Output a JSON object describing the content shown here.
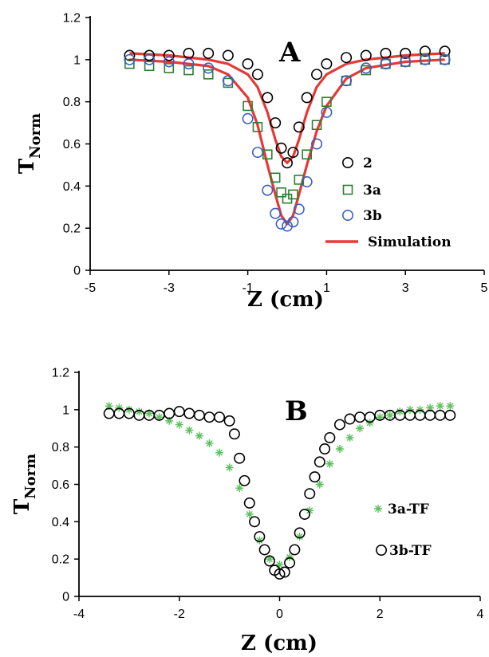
{
  "chart_data": [
    {
      "type": "scatter",
      "panel_label": "A",
      "xlabel": "Z (cm)",
      "ylabel": "T",
      "ylabel_sub": "Norm",
      "xlim": [
        -5,
        5
      ],
      "ylim": [
        0,
        1.2
      ],
      "xticks": [
        "-5",
        "-3",
        "-1",
        "1",
        "3",
        "5"
      ],
      "yticks": [
        "0",
        "0.2",
        "0.4",
        "0.6",
        "0.8",
        "1",
        "1.2"
      ],
      "legend_position": "right",
      "series": [
        {
          "name": "2",
          "marker": "circle",
          "color": "#000000",
          "x": [
            -4.0,
            -3.5,
            -3.0,
            -2.5,
            -2.0,
            -1.5,
            -1.0,
            -0.75,
            -0.5,
            -0.3,
            -0.15,
            0.0,
            0.15,
            0.3,
            0.5,
            0.75,
            1.0,
            1.5,
            2.0,
            2.5,
            3.0,
            3.5,
            4.0
          ],
          "y": [
            1.02,
            1.02,
            1.02,
            1.03,
            1.03,
            1.02,
            0.98,
            0.93,
            0.82,
            0.7,
            0.58,
            0.51,
            0.56,
            0.68,
            0.82,
            0.93,
            0.98,
            1.01,
            1.02,
            1.03,
            1.03,
            1.04,
            1.04
          ]
        },
        {
          "name": "3a",
          "marker": "square",
          "color": "#2e7d32",
          "x": [
            -4.0,
            -3.5,
            -3.0,
            -2.5,
            -2.0,
            -1.5,
            -1.0,
            -0.75,
            -0.5,
            -0.3,
            -0.15,
            0.0,
            0.15,
            0.3,
            0.5,
            0.75,
            1.0,
            1.5,
            2.0,
            2.5,
            3.0,
            3.5,
            4.0
          ],
          "y": [
            0.98,
            0.97,
            0.96,
            0.95,
            0.93,
            0.89,
            0.78,
            0.68,
            0.55,
            0.44,
            0.37,
            0.34,
            0.36,
            0.43,
            0.55,
            0.69,
            0.8,
            0.9,
            0.95,
            0.98,
            0.99,
            1.0,
            1.0
          ]
        },
        {
          "name": "3b",
          "marker": "circle",
          "color": "#3b5fc0",
          "x": [
            -4.0,
            -3.5,
            -3.0,
            -2.5,
            -2.0,
            -1.5,
            -1.0,
            -0.75,
            -0.5,
            -0.3,
            -0.15,
            0.0,
            0.15,
            0.3,
            0.5,
            0.75,
            1.0,
            1.5,
            2.0,
            2.5,
            3.0,
            3.5,
            4.0
          ],
          "y": [
            1.0,
            1.0,
            0.99,
            0.98,
            0.96,
            0.9,
            0.72,
            0.56,
            0.38,
            0.27,
            0.22,
            0.21,
            0.23,
            0.29,
            0.42,
            0.6,
            0.75,
            0.9,
            0.96,
            0.98,
            0.99,
            1.0,
            1.0
          ]
        },
        {
          "name": "Simulation",
          "marker": "line",
          "color": "#e53935",
          "x": [
            -4.0,
            -3.0,
            -2.0,
            -1.5,
            -1.0,
            -0.75,
            -0.5,
            -0.3,
            -0.15,
            0.0,
            0.15,
            0.3,
            0.5,
            0.75,
            1.0,
            1.5,
            2.0,
            3.0,
            4.0
          ],
          "y": [
            1.03,
            1.02,
            1.0,
            0.98,
            0.93,
            0.87,
            0.75,
            0.62,
            0.54,
            0.51,
            0.54,
            0.62,
            0.75,
            0.87,
            0.93,
            0.98,
            1.0,
            1.02,
            1.03
          ]
        },
        {
          "name": "",
          "marker": "line",
          "color": "#e53935",
          "x": [
            -4.0,
            -3.0,
            -2.0,
            -1.5,
            -1.0,
            -0.75,
            -0.5,
            -0.3,
            -0.15,
            0.0,
            0.15,
            0.3,
            0.5,
            0.75,
            1.0,
            1.5,
            2.0,
            3.0,
            4.0
          ],
          "y": [
            1.0,
            0.99,
            0.97,
            0.93,
            0.82,
            0.69,
            0.5,
            0.36,
            0.26,
            0.22,
            0.26,
            0.36,
            0.5,
            0.66,
            0.78,
            0.91,
            0.96,
            0.99,
            1.0
          ]
        }
      ]
    },
    {
      "type": "scatter",
      "panel_label": "B",
      "xlabel": "Z (cm)",
      "ylabel": "T",
      "ylabel_sub": "Norm",
      "xlim": [
        -4,
        4
      ],
      "ylim": [
        0,
        1.2
      ],
      "xticks": [
        "-4",
        "-2",
        "0",
        "2",
        "4"
      ],
      "yticks": [
        "0",
        "0.2",
        "0.4",
        "0.6",
        "0.8",
        "1",
        "1.2"
      ],
      "legend_position": "right",
      "series": [
        {
          "name": "3a-TF",
          "marker": "star",
          "color": "#5cc05c",
          "x": [
            -3.4,
            -3.2,
            -3.0,
            -2.8,
            -2.6,
            -2.4,
            -2.2,
            -2.0,
            -1.8,
            -1.6,
            -1.4,
            -1.2,
            -1.0,
            -0.8,
            -0.6,
            -0.4,
            -0.2,
            0.0,
            0.2,
            0.4,
            0.6,
            0.8,
            1.0,
            1.2,
            1.4,
            1.6,
            1.8,
            2.0,
            2.2,
            2.4,
            2.6,
            2.8,
            3.0,
            3.2,
            3.4
          ],
          "y": [
            1.02,
            1.01,
            1.0,
            0.99,
            0.98,
            0.96,
            0.94,
            0.92,
            0.89,
            0.86,
            0.82,
            0.77,
            0.69,
            0.58,
            0.44,
            0.3,
            0.2,
            0.17,
            0.21,
            0.32,
            0.46,
            0.6,
            0.71,
            0.79,
            0.85,
            0.9,
            0.93,
            0.96,
            0.97,
            0.99,
            1.0,
            1.0,
            1.01,
            1.02,
            1.02
          ]
        },
        {
          "name": "3b-TF",
          "marker": "circle",
          "color": "#000000",
          "x": [
            -3.4,
            -3.2,
            -3.0,
            -2.8,
            -2.6,
            -2.4,
            -2.2,
            -2.0,
            -1.8,
            -1.6,
            -1.4,
            -1.2,
            -1.0,
            -0.9,
            -0.8,
            -0.7,
            -0.6,
            -0.5,
            -0.4,
            -0.3,
            -0.2,
            -0.1,
            0.0,
            0.1,
            0.2,
            0.3,
            0.4,
            0.5,
            0.6,
            0.7,
            0.8,
            0.9,
            1.0,
            1.2,
            1.4,
            1.6,
            1.8,
            2.0,
            2.2,
            2.4,
            2.6,
            2.8,
            3.0,
            3.2,
            3.4
          ],
          "y": [
            0.98,
            0.98,
            0.98,
            0.97,
            0.97,
            0.97,
            0.98,
            0.99,
            0.98,
            0.97,
            0.96,
            0.96,
            0.94,
            0.87,
            0.74,
            0.62,
            0.5,
            0.4,
            0.32,
            0.25,
            0.19,
            0.14,
            0.12,
            0.13,
            0.18,
            0.25,
            0.34,
            0.44,
            0.55,
            0.64,
            0.72,
            0.79,
            0.85,
            0.92,
            0.95,
            0.96,
            0.96,
            0.97,
            0.97,
            0.97,
            0.97,
            0.97,
            0.97,
            0.97,
            0.97
          ]
        }
      ]
    }
  ]
}
